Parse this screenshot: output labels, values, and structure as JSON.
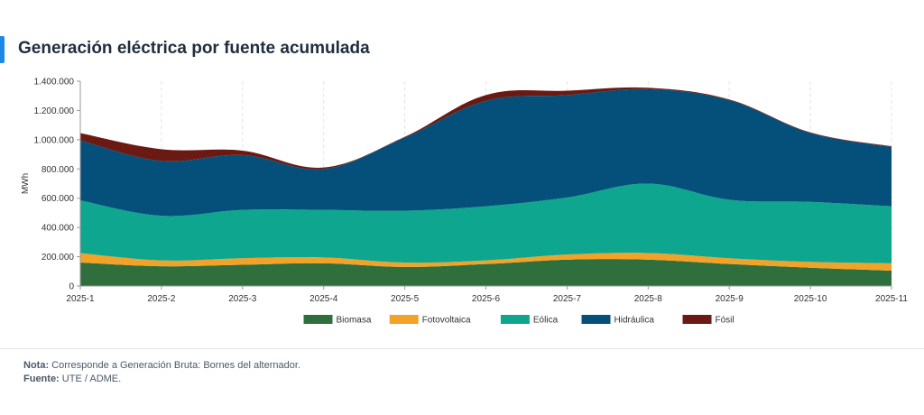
{
  "header": {
    "title": "Generación eléctrica por fuente acumulada"
  },
  "notes": {
    "nota_label": "Nota:",
    "nota_text": "Corresponde a Generación Bruta: Bornes del alternador.",
    "fuente_label": "Fuente:",
    "fuente_text": "UTE / ADME."
  },
  "chart_data": {
    "type": "area",
    "stacked": true,
    "categories": [
      "2025-1",
      "2025-2",
      "2025-3",
      "2025-4",
      "2025-5",
      "2025-6",
      "2025-7",
      "2025-8",
      "2025-9",
      "2025-10",
      "2025-11"
    ],
    "ylabel": "MWh",
    "ylim": [
      0,
      1400000
    ],
    "yticks": [
      0,
      200000,
      400000,
      600000,
      800000,
      1000000,
      1200000,
      1400000
    ],
    "ytick_labels": [
      "0",
      "200.000",
      "400.000",
      "600.000",
      "800.000",
      "1.000.000",
      "1.200.000",
      "1.400.000"
    ],
    "grid": "vertical-dashed",
    "legend_position": "bottom",
    "series": [
      {
        "name": "Biomasa",
        "color": "#2f6f3e",
        "values": [
          160000,
          135000,
          145000,
          155000,
          130000,
          150000,
          180000,
          180000,
          150000,
          125000,
          105000
        ]
      },
      {
        "name": "Fotovoltaica",
        "color": "#f2a227",
        "values": [
          65000,
          40000,
          45000,
          40000,
          30000,
          25000,
          35000,
          45000,
          40000,
          40000,
          50000
        ]
      },
      {
        "name": "Eólica",
        "color": "#0ea68e",
        "values": [
          360000,
          305000,
          330000,
          325000,
          355000,
          370000,
          390000,
          475000,
          400000,
          410000,
          390000
        ]
      },
      {
        "name": "Hidráulica",
        "color": "#04507a",
        "values": [
          410000,
          375000,
          375000,
          280000,
          500000,
          720000,
          700000,
          645000,
          680000,
          470000,
          405000
        ]
      },
      {
        "name": "Fósil",
        "color": "#6b1a13",
        "values": [
          50000,
          80000,
          30000,
          10000,
          5000,
          40000,
          30000,
          10000,
          5000,
          5000,
          5000
        ]
      }
    ]
  }
}
